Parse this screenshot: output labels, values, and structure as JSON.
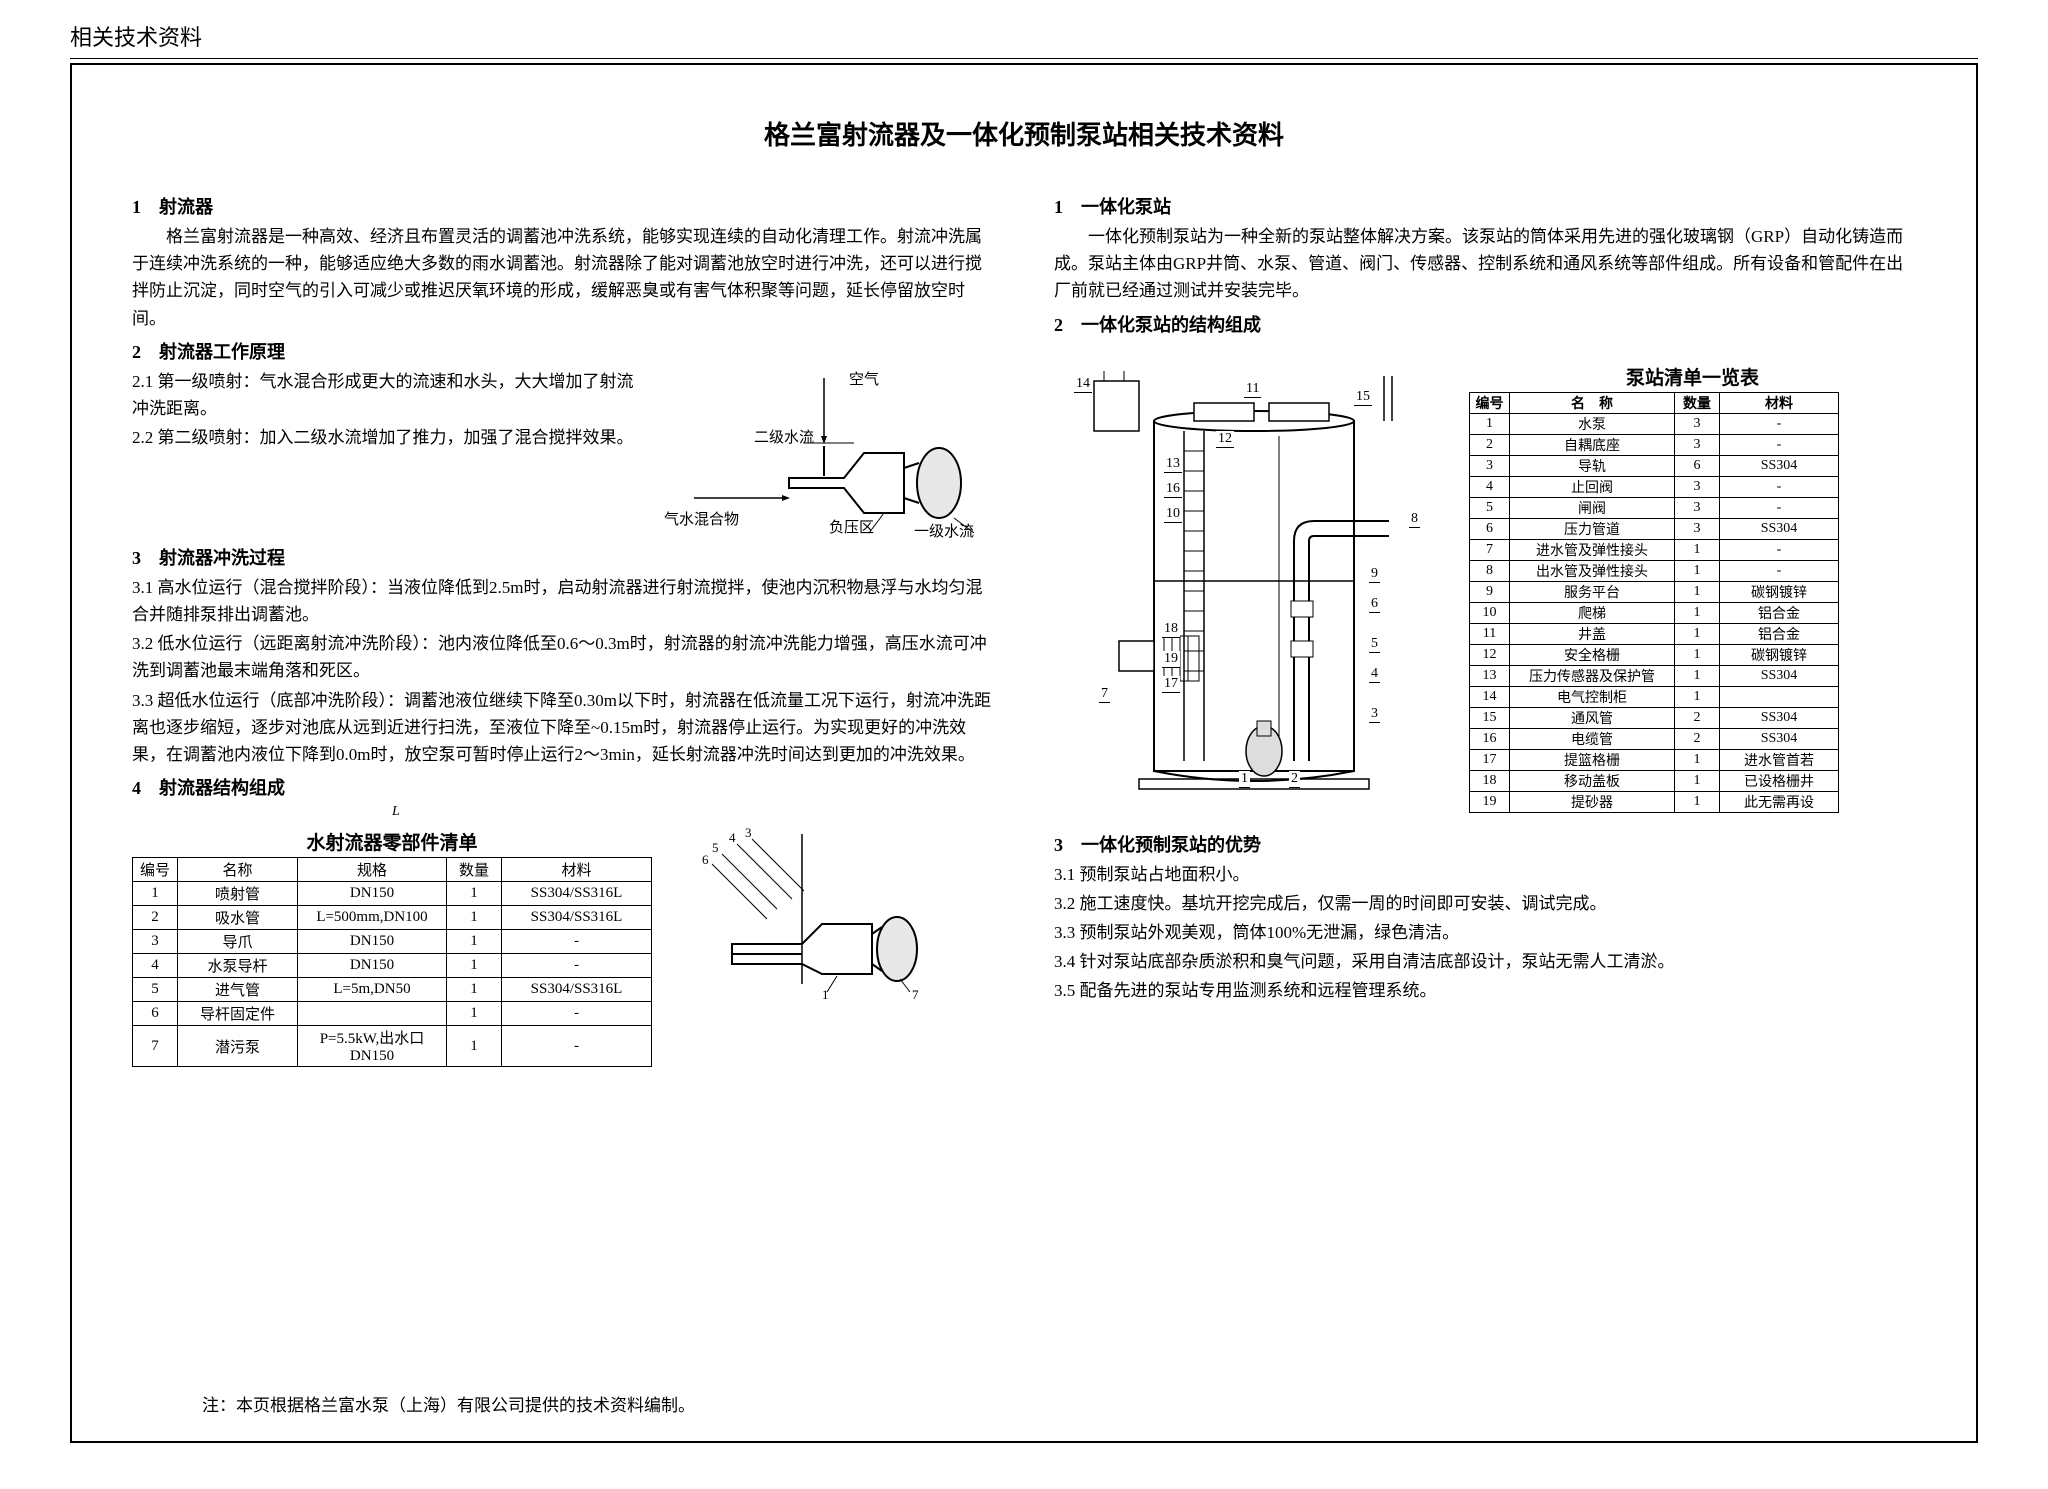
{
  "header": "相关技术资料",
  "title": "格兰富射流器及一体化预制泵站相关技术资料",
  "left": {
    "s1": {
      "h": "1　射流器",
      "p": "格兰富射流器是一种高效、经济且布置灵活的调蓄池冲洗系统，能够实现连续的自动化清理工作。射流冲洗属于连续冲洗系统的一种，能够适应绝大多数的雨水调蓄池。射流器除了能对调蓄池放空时进行冲洗，还可以进行搅拌防止沉淀，同时空气的引入可减少或推迟厌氧环境的形成，缓解恶臭或有害气体积聚等问题，延长停留放空时间。"
    },
    "s2": {
      "h": "2　射流器工作原理",
      "p1": "2.1 第一级喷射：气水混合形成更大的流速和水头，大大增加了射流冲洗距离。",
      "p2": "2.2 第二级喷射：加入二级水流增加了推力，加强了混合搅拌效果。",
      "labels": {
        "air": "空气",
        "l2": "二级水流",
        "mix": "气水混合物",
        "neg": "负压区",
        "l1": "一级水流"
      }
    },
    "s3": {
      "h": "3　射流器冲洗过程",
      "p1": "3.1 高水位运行（混合搅拌阶段）：当液位降低到2.5m时，启动射流器进行射流搅拌，使池内沉积物悬浮与水均匀混合并随排泵排出调蓄池。",
      "p2": "3.2 低水位运行（远距离射流冲洗阶段）：池内液位降低至0.6～0.3m时，射流器的射流冲洗能力增强，高压水流可冲洗到调蓄池最末端角落和死区。",
      "p3": "3.3 超低水位运行（底部冲洗阶段）：调蓄池液位继续下降至0.30m以下时，射流器在低流量工况下运行，射流冲洗距离也逐步缩短，逐步对池底从远到近进行扫洗，至液位下降至~0.15m时，射流器停止运行。为实现更好的冲洗效果，在调蓄池内液位下降到0.0m时，放空泵可暂时停止运行2～3min，延长射流器冲洗时间达到更加的冲洗效果。"
    },
    "s4": {
      "h": "4　射流器结构组成",
      "tbl_title": "水射流器零部件清单",
      "cols": [
        "编号",
        "名称",
        "规格",
        "数量",
        "材料"
      ],
      "rows": [
        [
          "1",
          "喷射管",
          "DN150",
          "1",
          "SS304/SS316L"
        ],
        [
          "2",
          "吸水管",
          "L=500mm,DN100",
          "1",
          "SS304/SS316L"
        ],
        [
          "3",
          "导爪",
          "DN150",
          "1",
          "-"
        ],
        [
          "4",
          "水泵导杆",
          "DN150",
          "1",
          "-"
        ],
        [
          "5",
          "进气管",
          "L=5m,DN50",
          "1",
          "SS304/SS316L"
        ],
        [
          "6",
          "导杆固定件",
          "",
          "1",
          "-"
        ],
        [
          "7",
          "潜污泵",
          "P=5.5kW,出水口DN150",
          "1",
          "-"
        ]
      ],
      "L": "L"
    }
  },
  "right": {
    "s1": {
      "h": "1　一体化泵站",
      "p": "一体化预制泵站为一种全新的泵站整体解决方案。该泵站的筒体采用先进的强化玻璃钢（GRP）自动化铸造而成。泵站主体由GRP井筒、水泵、管道、阀门、传感器、控制系统和通风系统等部件组成。所有设备和管配件在出厂前就已经通过测试并安装完毕。"
    },
    "s2": {
      "h": "2　一体化泵站的结构组成",
      "tbl_title": "泵站清单一览表",
      "cols": [
        "编号",
        "名　称",
        "数量",
        "材料"
      ],
      "rows": [
        [
          "1",
          "水泵",
          "3",
          "-"
        ],
        [
          "2",
          "自耦底座",
          "3",
          "-"
        ],
        [
          "3",
          "导轨",
          "6",
          "SS304"
        ],
        [
          "4",
          "止回阀",
          "3",
          "-"
        ],
        [
          "5",
          "闸阀",
          "3",
          "-"
        ],
        [
          "6",
          "压力管道",
          "3",
          "SS304"
        ],
        [
          "7",
          "进水管及弹性接头",
          "1",
          "-"
        ],
        [
          "8",
          "出水管及弹性接头",
          "1",
          "-"
        ],
        [
          "9",
          "服务平台",
          "1",
          "碳钢镀锌"
        ],
        [
          "10",
          "爬梯",
          "1",
          "铝合金"
        ],
        [
          "11",
          "井盖",
          "1",
          "铝合金"
        ],
        [
          "12",
          "安全格栅",
          "1",
          "碳钢镀锌"
        ],
        [
          "13",
          "压力传感器及保护管",
          "1",
          "SS304"
        ],
        [
          "14",
          "电气控制柜",
          "1",
          ""
        ],
        [
          "15",
          "通风管",
          "2",
          "SS304"
        ],
        [
          "16",
          "电缆管",
          "2",
          "SS304"
        ],
        [
          "17",
          "提篮格栅",
          "1",
          "进水管首若"
        ],
        [
          "18",
          "移动盖板",
          "1",
          "已设格栅井"
        ],
        [
          "19",
          "提砂器",
          "1",
          "此无需再设"
        ]
      ],
      "callouts": [
        "1",
        "2",
        "3",
        "4",
        "5",
        "6",
        "7",
        "8",
        "9",
        "10",
        "11",
        "12",
        "13",
        "14",
        "15",
        "16",
        "17",
        "18",
        "19"
      ]
    },
    "s3": {
      "h": "3　一体化预制泵站的优势",
      "p1": "3.1 预制泵站占地面积小。",
      "p2": "3.2 施工速度快。基坑开挖完成后，仅需一周的时间即可安装、调试完成。",
      "p3": "3.3 预制泵站外观美观，筒体100%无泄漏，绿色清洁。",
      "p4": "3.4 针对泵站底部杂质淤积和臭气问题，采用自清洁底部设计，泵站无需人工清淤。",
      "p5": "3.5 配备先进的泵站专用监测系统和远程管理系统。"
    }
  },
  "footnote": "注：本页根据格兰富水泵（上海）有限公司提供的技术资料编制。"
}
